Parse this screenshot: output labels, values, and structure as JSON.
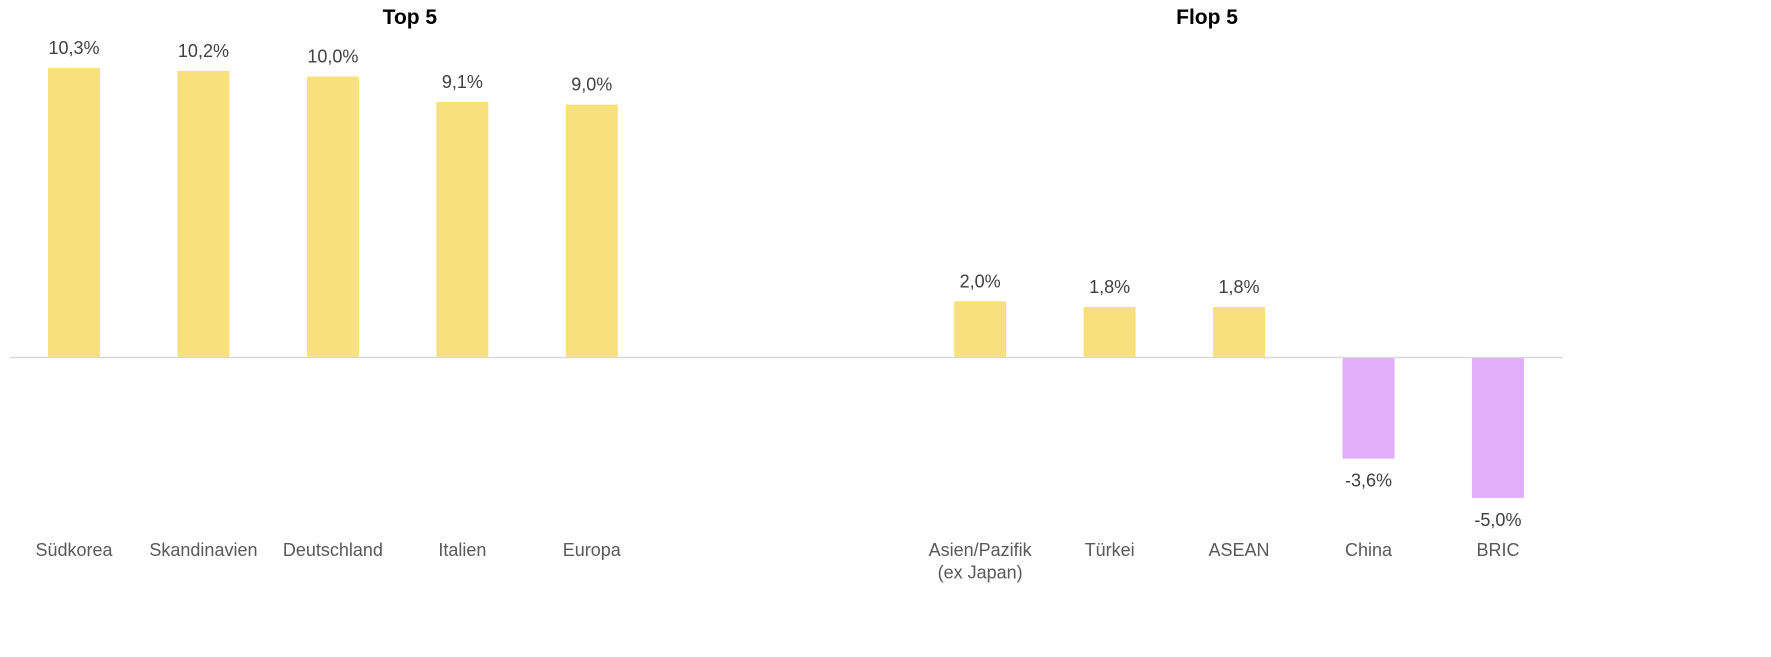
{
  "chart_data": {
    "type": "bar",
    "annotations": [
      {
        "text": "Top 5",
        "category_index": 2
      },
      {
        "text": "Flop 5",
        "category_index": 9
      }
    ],
    "categories": [
      "Südkorea",
      "Skandinavien",
      "Deutschland",
      "Italien",
      "Europa",
      null,
      null,
      "Asien/Pazifik\n(ex Japan)",
      "Türkei",
      "ASEAN",
      "China",
      "BRIC"
    ],
    "values": [
      10.3,
      10.2,
      10.0,
      9.1,
      9.0,
      null,
      null,
      2.0,
      1.8,
      1.8,
      -3.6,
      -5.0
    ],
    "value_labels": [
      "10,3%",
      "10,2%",
      "10,0%",
      "9,1%",
      "9,0%",
      null,
      null,
      "2,0%",
      "1,8%",
      "1,8%",
      "-3,6%",
      "-5,0%"
    ],
    "color_positive": "#f8e17c",
    "color_negative": "#e2aefc",
    "ylim": [
      -6,
      11.3
    ]
  }
}
